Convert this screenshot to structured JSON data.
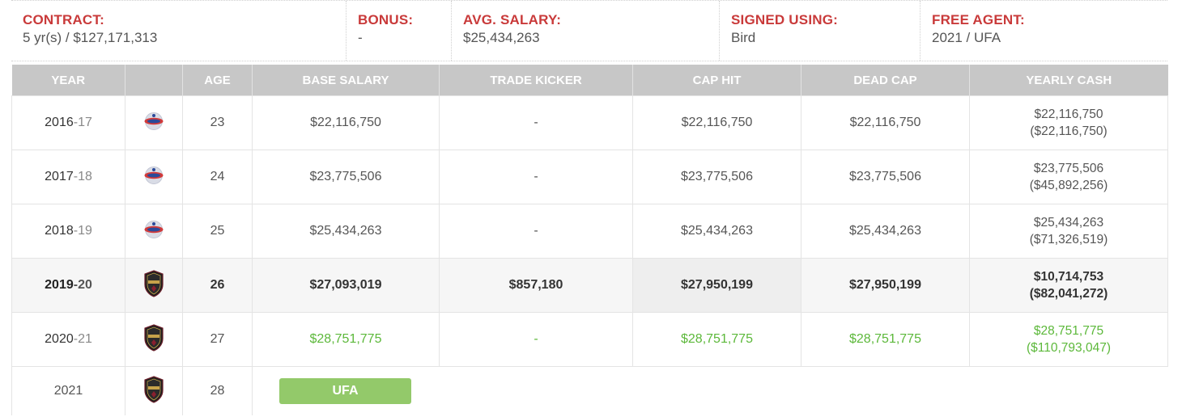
{
  "summary": {
    "contract": {
      "label": "CONTRACT:",
      "value": "5 yr(s) / $127,171,313"
    },
    "bonus": {
      "label": "BONUS:",
      "value": "-"
    },
    "avg_salary": {
      "label": "AVG. SALARY:",
      "value": "$25,434,263"
    },
    "signed_using": {
      "label": "SIGNED USING:",
      "value": "Bird"
    },
    "free_agent": {
      "label": "FREE AGENT:",
      "value": "2021 / UFA"
    }
  },
  "headers": {
    "year": "YEAR",
    "team": "",
    "age": "AGE",
    "base_salary": "BASE SALARY",
    "trade_kicker": "TRADE KICKER",
    "cap_hit": "CAP HIT",
    "dead_cap": "DEAD CAP",
    "yearly_cash": "YEARLY CASH"
  },
  "rows": [
    {
      "year_a": "2016",
      "year_b": "17",
      "team_icon": "pistons-logo-icon",
      "age": "23",
      "base": "$22,116,750",
      "kicker": "-",
      "cap": "$22,116,750",
      "dead": "$22,116,750",
      "cash": "$22,116,750",
      "cash_cum": "($22,116,750)"
    },
    {
      "year_a": "2017",
      "year_b": "18",
      "team_icon": "pistons-logo-icon",
      "age": "24",
      "base": "$23,775,506",
      "kicker": "-",
      "cap": "$23,775,506",
      "dead": "$23,775,506",
      "cash": "$23,775,506",
      "cash_cum": "($45,892,256)"
    },
    {
      "year_a": "2018",
      "year_b": "19",
      "team_icon": "pistons-logo-icon",
      "age": "25",
      "base": "$25,434,263",
      "kicker": "-",
      "cap": "$25,434,263",
      "dead": "$25,434,263",
      "cash": "$25,434,263",
      "cash_cum": "($71,326,519)"
    },
    {
      "year_a": "2019",
      "year_b": "20",
      "team_icon": "cavaliers-logo-icon",
      "age": "26",
      "base": "$27,093,019",
      "kicker": "$857,180",
      "cap": "$27,950,199",
      "dead": "$27,950,199",
      "cash": "$10,714,753",
      "cash_cum": "($82,041,272)"
    },
    {
      "year_a": "2020",
      "year_b": "21",
      "team_icon": "cavaliers-logo-icon",
      "age": "27",
      "base": "$28,751,775",
      "kicker": "-",
      "cap": "$28,751,775",
      "dead": "$28,751,775",
      "cash": "$28,751,775",
      "cash_cum": "($110,793,047)"
    }
  ],
  "final_row": {
    "year": "2021",
    "team_icon": "cavaliers-logo-icon",
    "age": "28",
    "status": "UFA"
  },
  "colors": {
    "label_red": "#c93a3a",
    "header_gray": "#c7c7c7",
    "future_green": "#5cb83a",
    "ufa_green": "#93c96a"
  }
}
